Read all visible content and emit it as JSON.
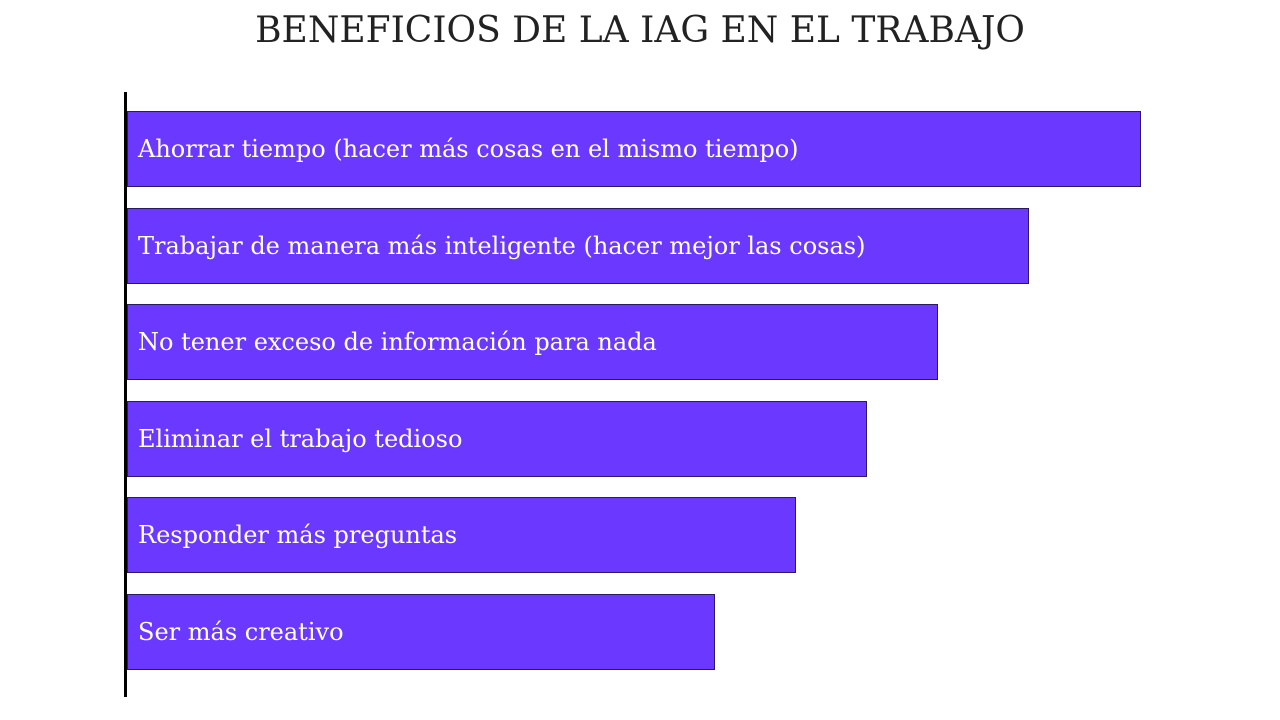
{
  "title": "BENEFICIOS DE LA IAG EN EL TRABAJO",
  "colors": {
    "bar": "#6a38ff",
    "axis": "#000000",
    "label": "#ffffff"
  },
  "chart_data": {
    "type": "bar",
    "orientation": "horizontal",
    "title": "BENEFICIOS DE LA IAG EN EL TRABAJO",
    "xlabel": "",
    "ylabel": "",
    "grid": false,
    "legend": "none",
    "categories": [
      "Ahorrar tiempo (hacer más cosas en el mismo tiempo)",
      "Trabajar de manera más inteligente (hacer mejor las cosas)",
      "No tener exceso de información para nada",
      "Eliminar el trabajo tedioso",
      "Responder más preguntas",
      "Ser más creativo"
    ],
    "values": [
      100,
      89,
      80,
      73,
      66,
      58
    ],
    "xlim": [
      0,
      100
    ]
  }
}
